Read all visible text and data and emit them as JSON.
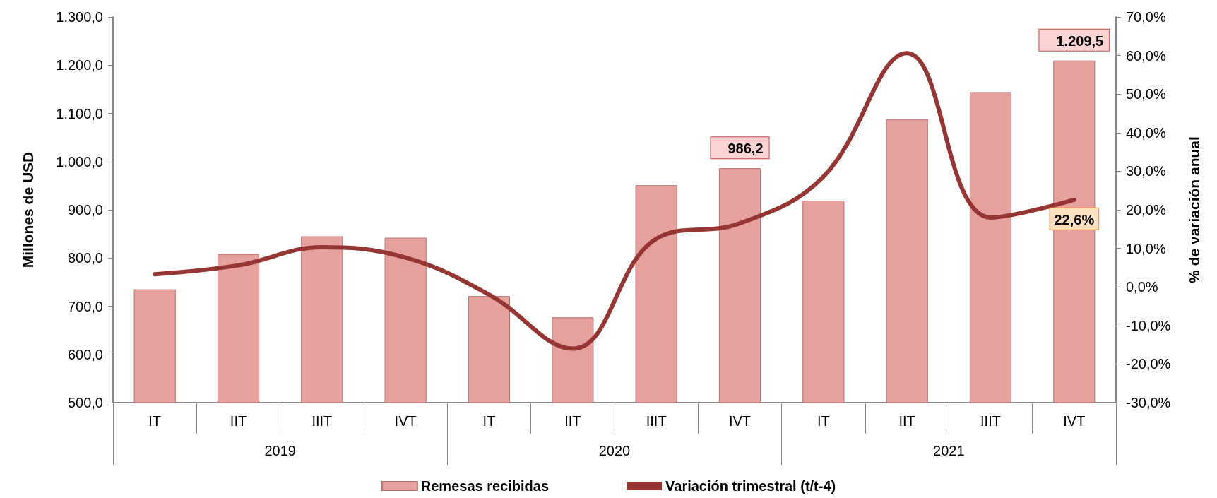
{
  "chart_data": {
    "type": "bar",
    "categories": [
      "IT",
      "IIT",
      "IIIT",
      "IVT",
      "IT",
      "IIT",
      "IIIT",
      "IVT",
      "IT",
      "IIT",
      "IIIT",
      "IVT"
    ],
    "annotations": [
      "2019",
      "2020",
      "2021"
    ],
    "ylabel": "Millones de USD",
    "y2label": "% de variación anual",
    "ylim": [
      500,
      1300
    ],
    "yticks": [
      {
        "value": 500,
        "label": "500,0"
      },
      {
        "value": 600,
        "label": "600,0"
      },
      {
        "value": 700,
        "label": "700,0"
      },
      {
        "value": 800,
        "label": "800,0"
      },
      {
        "value": 900,
        "label": "900,0"
      },
      {
        "value": 1000,
        "label": "1.000,0"
      },
      {
        "value": 1100,
        "label": "1.100,0"
      },
      {
        "value": 1200,
        "label": "1.200,0"
      },
      {
        "value": 1300,
        "label": "1.300,0"
      }
    ],
    "y2lim": [
      -30,
      70
    ],
    "y2ticks": [
      {
        "value": -30,
        "label": "-30,0%"
      },
      {
        "value": -20,
        "label": "-20,0%"
      },
      {
        "value": -10,
        "label": "-10,0%"
      },
      {
        "value": 0,
        "label": "0,0%"
      },
      {
        "value": 10,
        "label": "10,0%"
      },
      {
        "value": 20,
        "label": "20,0%"
      },
      {
        "value": 30,
        "label": "30,0%"
      },
      {
        "value": 40,
        "label": "40,0%"
      },
      {
        "value": 50,
        "label": "50,0%"
      },
      {
        "value": 60,
        "label": "60,0%"
      },
      {
        "value": 70,
        "label": "70,0%"
      }
    ],
    "series": [
      {
        "name": "Remesas recibidas",
        "color": "#e6a09e",
        "values": [
          735,
          808,
          845,
          842,
          721,
          677,
          951,
          986.2,
          919,
          1088,
          1144,
          1209.5
        ],
        "value_labels": [
          null,
          null,
          null,
          null,
          null,
          null,
          null,
          "986,2",
          null,
          null,
          null,
          "1.209,5"
        ]
      },
      {
        "name": "Variación trimestral (t/t-4)",
        "type": "line",
        "axis": "y2",
        "color": "#963634",
        "values": [
          3.3,
          5.6,
          10.3,
          7.6,
          -2,
          -16,
          12.5,
          16.5,
          28.6,
          60.6,
          18,
          22.6
        ],
        "value_labels": [
          null,
          null,
          null,
          null,
          null,
          null,
          null,
          null,
          null,
          null,
          null,
          "22,6%"
        ]
      }
    ],
    "grid": false,
    "legend": "bottom",
    "marker": "none",
    "line_style": "solid"
  }
}
